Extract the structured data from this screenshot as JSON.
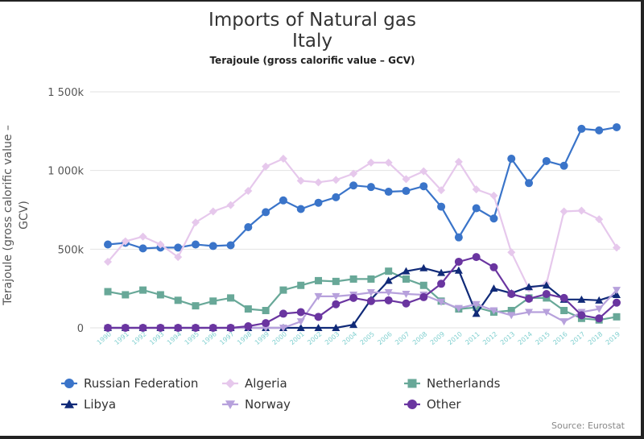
{
  "chart_data": {
    "type": "line",
    "title": "Imports of Natural gas",
    "title_line2": "Italy",
    "subtitle": "Terajoule (gross calorific value – GCV)",
    "ylabel_line1": "Terajoule (gross calorific value –",
    "ylabel_line2": "GCV)",
    "xlabel": "",
    "ylim": [
      0,
      1500000
    ],
    "yticks": [
      {
        "value": 0,
        "label": "0"
      },
      {
        "value": 500000,
        "label": "500k"
      },
      {
        "value": 1000000,
        "label": "1 000k"
      },
      {
        "value": 1500000,
        "label": "1 500k"
      }
    ],
    "grid": true,
    "legend_position": "bottom",
    "x": [
      "1990",
      "1991",
      "1992",
      "1993",
      "1994",
      "1995",
      "1996",
      "1997",
      "1998",
      "1999",
      "2000",
      "2001",
      "2002",
      "2003",
      "2004",
      "2005",
      "2006",
      "2007",
      "2008",
      "2009",
      "2010",
      "2011",
      "2012",
      "2013",
      "2014",
      "2015",
      "2016",
      "2017",
      "2018",
      "2019"
    ],
    "series": [
      {
        "name": "Russian Federation",
        "color": "#3a74c9",
        "marker": "circle",
        "values": [
          530000,
          540000,
          505000,
          510000,
          510000,
          530000,
          520000,
          525000,
          640000,
          735000,
          810000,
          755000,
          795000,
          830000,
          905000,
          895000,
          865000,
          870000,
          900000,
          770000,
          575000,
          760000,
          695000,
          1075000,
          920000,
          1060000,
          1030000,
          1265000,
          1255000,
          1275000
        ]
      },
      {
        "name": "Algeria",
        "color": "#e6c8ec",
        "marker": "diamond",
        "values": [
          420000,
          550000,
          580000,
          530000,
          450000,
          670000,
          740000,
          780000,
          870000,
          1025000,
          1075000,
          935000,
          925000,
          940000,
          980000,
          1050000,
          1050000,
          945000,
          995000,
          875000,
          1055000,
          880000,
          840000,
          480000,
          250000,
          280000,
          740000,
          745000,
          690000,
          510000
        ]
      },
      {
        "name": "Netherlands",
        "color": "#68a898",
        "marker": "square",
        "values": [
          230000,
          210000,
          240000,
          210000,
          175000,
          140000,
          170000,
          190000,
          120000,
          110000,
          240000,
          270000,
          300000,
          295000,
          310000,
          310000,
          360000,
          310000,
          270000,
          170000,
          120000,
          130000,
          100000,
          110000,
          190000,
          190000,
          110000,
          60000,
          50000,
          70000
        ]
      },
      {
        "name": "Libya",
        "color": "#102a78",
        "marker": "triangle",
        "values": [
          0,
          0,
          0,
          0,
          0,
          0,
          0,
          0,
          0,
          0,
          0,
          0,
          0,
          0,
          20000,
          180000,
          300000,
          360000,
          380000,
          350000,
          365000,
          90000,
          250000,
          220000,
          260000,
          270000,
          180000,
          180000,
          175000,
          210000
        ]
      },
      {
        "name": "Norway",
        "color": "#b7a1dc",
        "marker": "triangle-down",
        "values": [
          0,
          0,
          0,
          0,
          0,
          0,
          0,
          0,
          0,
          0,
          0,
          40000,
          200000,
          200000,
          210000,
          225000,
          225000,
          215000,
          210000,
          165000,
          125000,
          150000,
          110000,
          80000,
          100000,
          100000,
          40000,
          100000,
          120000,
          240000
        ]
      },
      {
        "name": "Other",
        "color": "#6a35a0",
        "marker": "circle",
        "values": [
          0,
          0,
          0,
          0,
          0,
          0,
          0,
          0,
          10000,
          30000,
          90000,
          100000,
          70000,
          150000,
          190000,
          170000,
          175000,
          155000,
          195000,
          280000,
          420000,
          450000,
          385000,
          215000,
          185000,
          215000,
          190000,
          80000,
          60000,
          160000
        ]
      }
    ],
    "legend_labels": [
      "Russian Federation",
      "Algeria",
      "Netherlands",
      "Libya",
      "Norway",
      "Other"
    ]
  },
  "source": "Source: Eurostat"
}
